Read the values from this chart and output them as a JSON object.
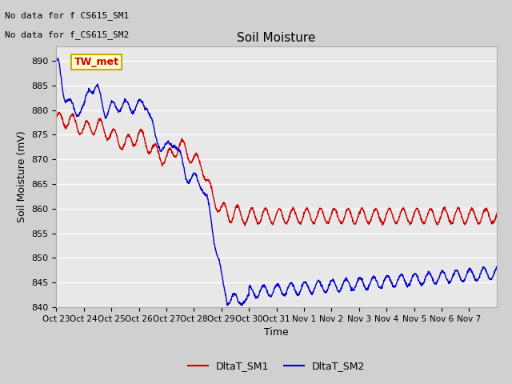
{
  "title": "Soil Moisture",
  "xlabel": "Time",
  "ylabel": "Soil Moisture (mV)",
  "ylim": [
    840,
    893
  ],
  "yticks": [
    840,
    845,
    850,
    855,
    860,
    865,
    870,
    875,
    880,
    885,
    890
  ],
  "xtick_labels": [
    "Oct 23",
    "Oct 24",
    "Oct 25",
    "Oct 26",
    "Oct 27",
    "Oct 28",
    "Oct 29",
    "Oct 30",
    "Oct 31",
    "Nov 1",
    "Nov 2",
    "Nov 3",
    "Nov 4",
    "Nov 5",
    "Nov 6",
    "Nov 7"
  ],
  "no_data_text1": "No data for f CS615_SM1",
  "no_data_text2": "No data for f_CS615_SM2",
  "legend_label1": "DltaT_SM1",
  "legend_label2": "DltaT_SM2",
  "tw_met_label": "TW_met",
  "color_sm1": "#cc0000",
  "color_sm2": "#0000cc",
  "fig_bg_color": "#d0d0d0",
  "plot_bg_color": "#e8e8e8",
  "grid_color": "#ffffff",
  "tw_met_fg": "#cc0000",
  "tw_met_bg": "#ffffcc",
  "tw_met_border": "#ccaa00"
}
